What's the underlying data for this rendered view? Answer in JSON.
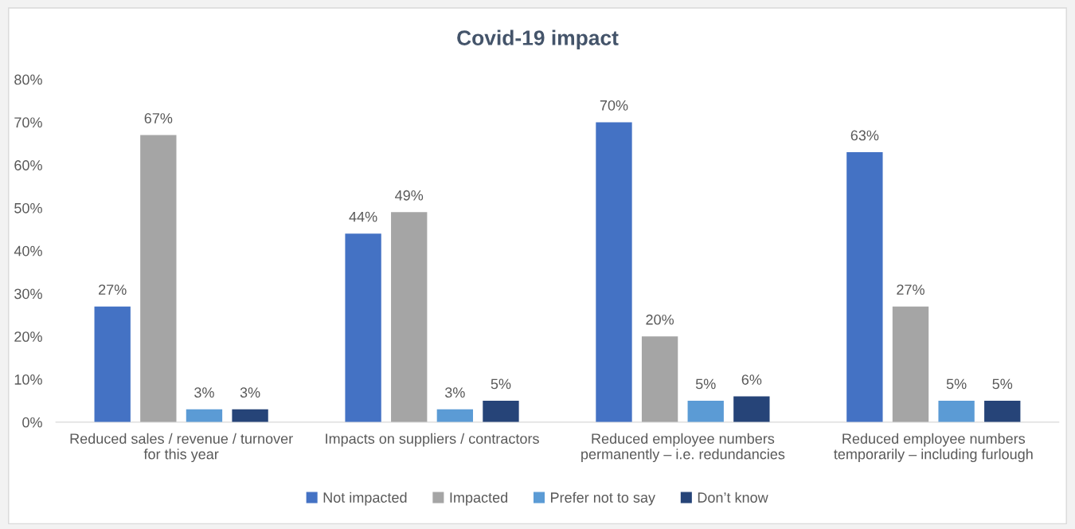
{
  "chart_data": {
    "type": "bar",
    "title": "Covid-19 impact",
    "categories": [
      "Reduced sales / revenue / turnover\nfor this year",
      "Impacts on suppliers / contractors",
      "Reduced employee numbers\npermanently – i.e. redundancies",
      "Reduced employee numbers\ntemporarily – including furlough"
    ],
    "series": [
      {
        "name": "Not impacted",
        "color": "#4472c4",
        "values": [
          27,
          44,
          70,
          63
        ],
        "value_labels": [
          "27%",
          "44%",
          "70%",
          "63%"
        ]
      },
      {
        "name": "Impacted",
        "color": "#a5a5a5",
        "values": [
          67,
          49,
          20,
          27
        ],
        "value_labels": [
          "67%",
          "49%",
          "20%",
          "27%"
        ]
      },
      {
        "name": "Prefer not to say",
        "color": "#5b9bd5",
        "values": [
          3,
          3,
          5,
          5
        ],
        "value_labels": [
          "3%",
          "3%",
          "5%",
          "5%"
        ]
      },
      {
        "name": "Don’t know",
        "color": "#264478",
        "values": [
          3,
          5,
          6,
          5
        ],
        "value_labels": [
          "3%",
          "5%",
          "6%",
          "5%"
        ]
      }
    ],
    "ylim": [
      0,
      80
    ],
    "yticks": [
      {
        "value": 0,
        "label": "0%"
      },
      {
        "value": 10,
        "label": "10%"
      },
      {
        "value": 20,
        "label": "20%"
      },
      {
        "value": 30,
        "label": "30%"
      },
      {
        "value": 40,
        "label": "40%"
      },
      {
        "value": 50,
        "label": "50%"
      },
      {
        "value": 60,
        "label": "60%"
      },
      {
        "value": 70,
        "label": "70%"
      },
      {
        "value": 80,
        "label": "80%"
      }
    ],
    "grid": false,
    "legend": "bottom"
  }
}
